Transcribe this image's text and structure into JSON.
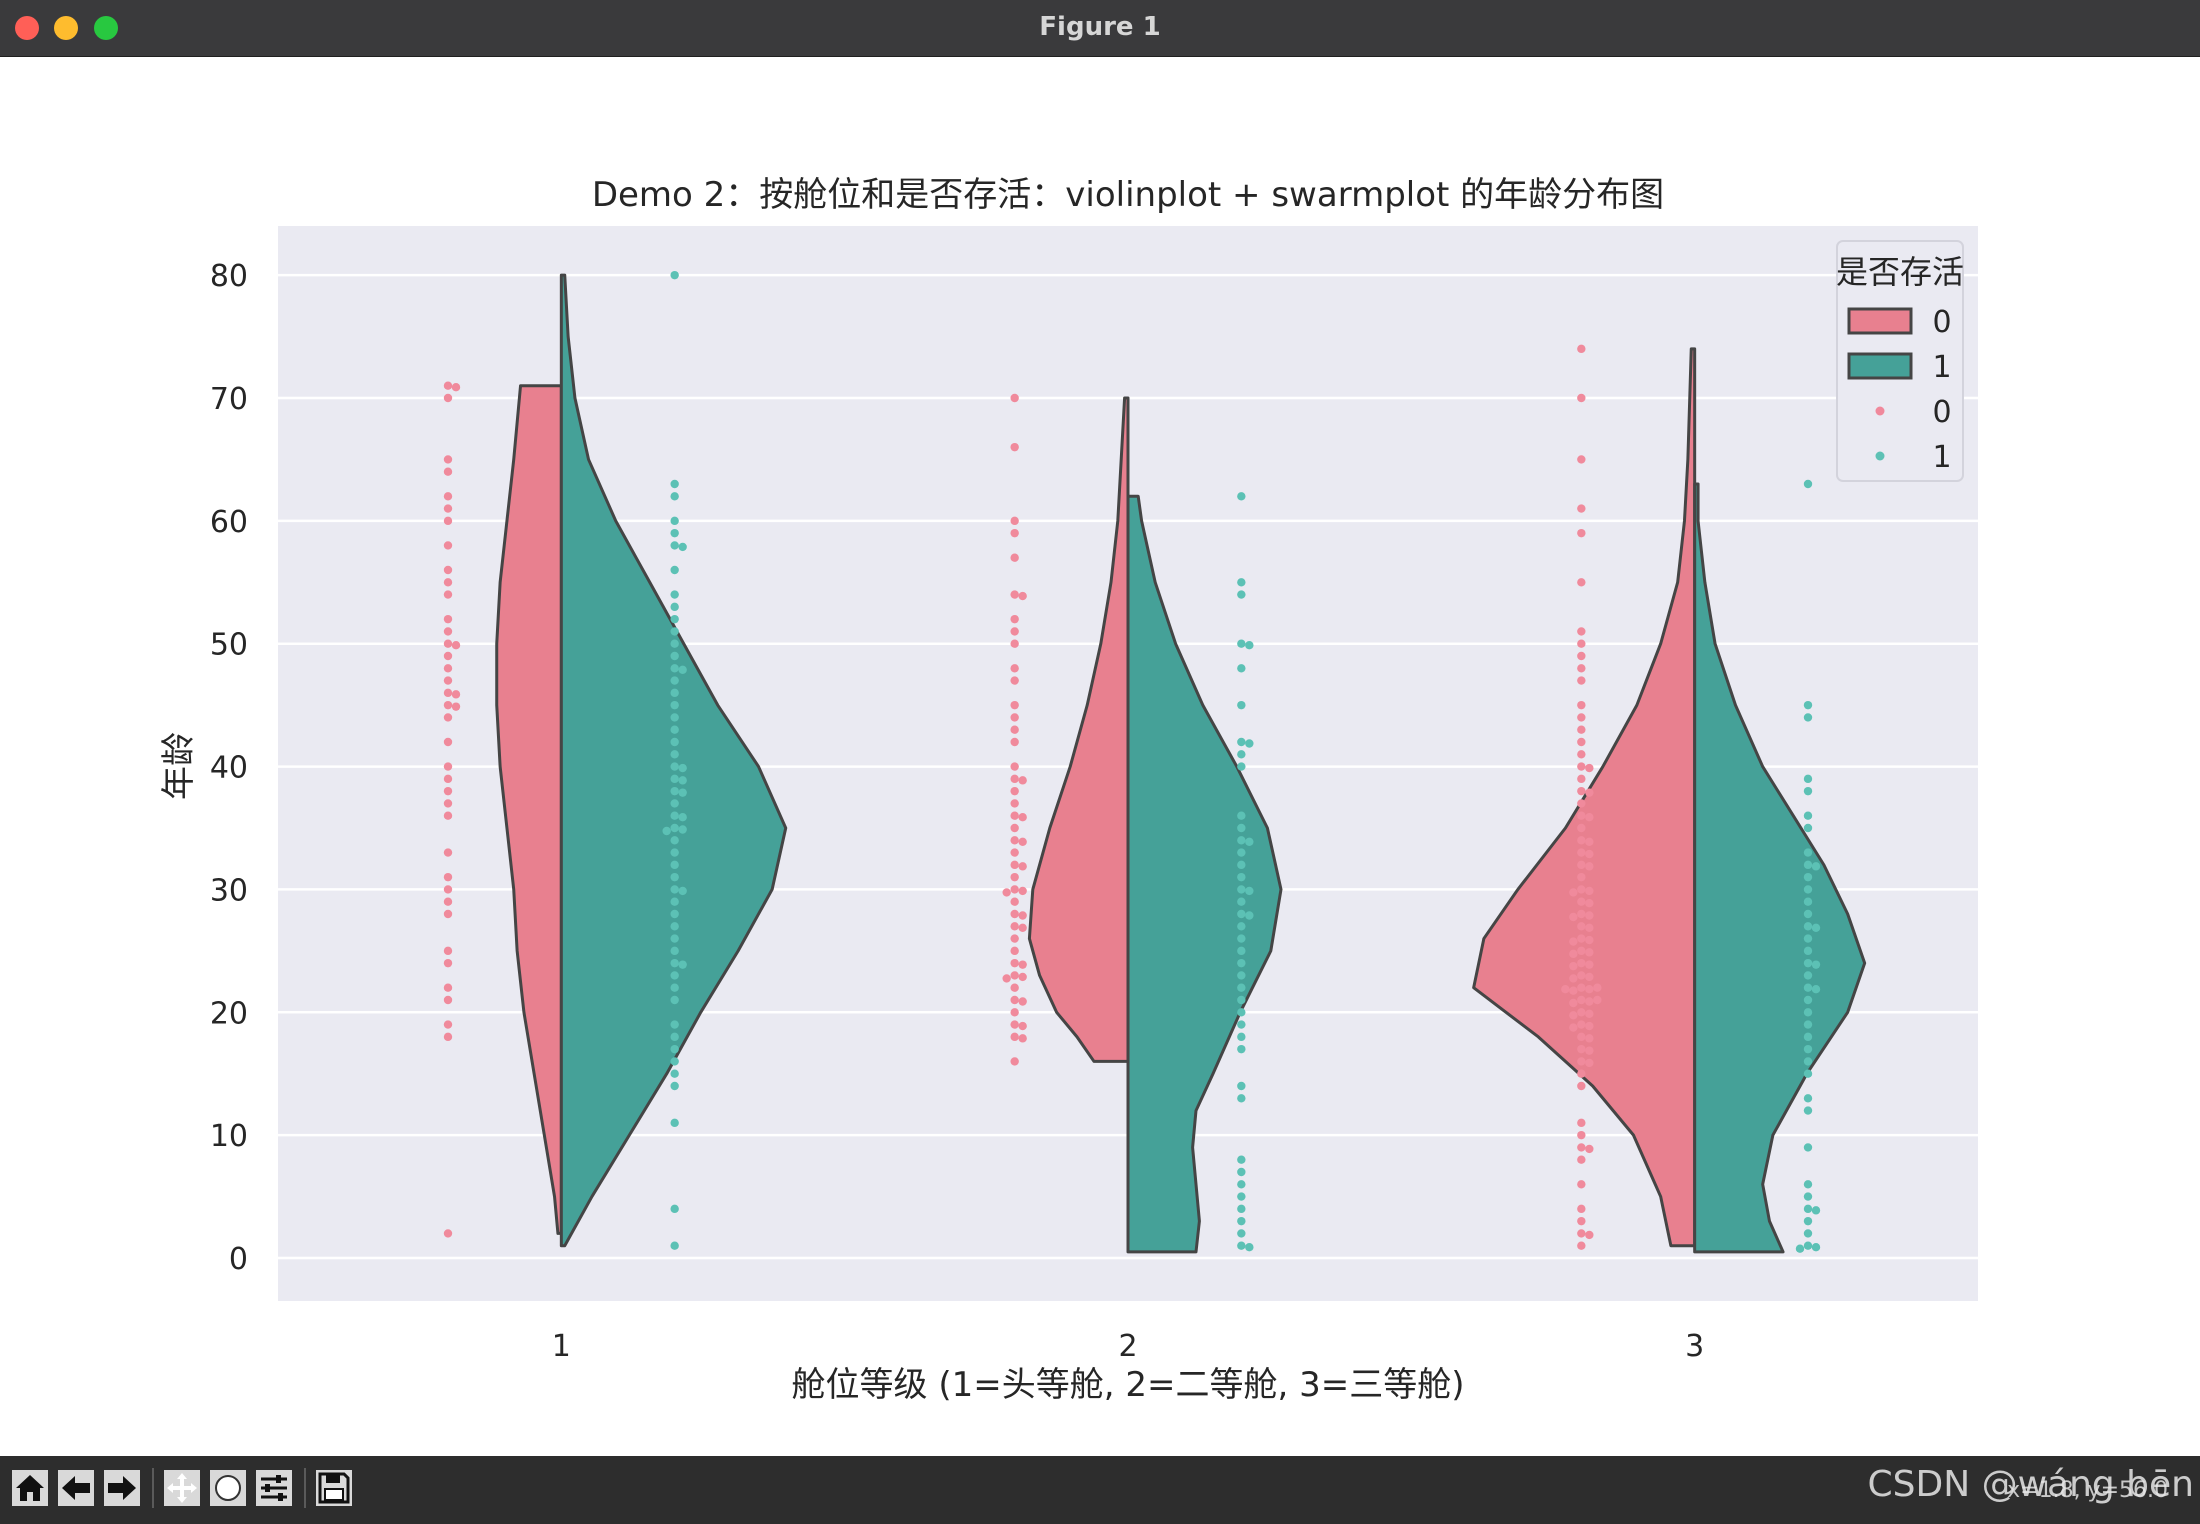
{
  "window": {
    "title": "Figure 1"
  },
  "toolbar": {
    "buttons": [
      "home-icon",
      "back-icon",
      "forward-icon",
      "pan-icon",
      "zoom-icon",
      "configure-subplots-icon",
      "save-icon"
    ],
    "coords": "x=1.8, y=56.0",
    "watermark": "CSDN @wáng bēn"
  },
  "chart_data": {
    "type": "violin",
    "title": "Demo 2：按舱位和是否存活：violinplot + swarmplot 的年龄分布图",
    "xlabel": "舱位等级 (1=头等舱, 2=二等舱, 3=三等舱)",
    "ylabel": "年龄",
    "categories": [
      "1",
      "2",
      "3"
    ],
    "ylim": [
      -3.5,
      84
    ],
    "yticks": [
      0,
      10,
      20,
      30,
      40,
      50,
      60,
      70,
      80
    ],
    "grid": true,
    "legend": {
      "title": "是否存活",
      "placement": "top-right",
      "entries": [
        {
          "label": "0",
          "kind": "patch",
          "color": "#e8808f"
        },
        {
          "label": "1",
          "kind": "patch",
          "color": "#45a198"
        },
        {
          "label": "0",
          "kind": "marker",
          "color": "#f0899c"
        },
        {
          "label": "1",
          "kind": "marker",
          "color": "#5ec1b5"
        }
      ]
    },
    "colors": {
      "survived_0_violin": "#e8808f",
      "survived_1_violin": "#45a198",
      "survived_0_points": "#f08a9c",
      "survived_1_points": "#5cc1b5",
      "axes_bg": "#eaeaf2",
      "violin_edge": "#454545"
    },
    "violins": [
      {
        "category": "1",
        "survived": 0,
        "profile": [
          [
            2,
            0.01
          ],
          [
            5,
            0.02
          ],
          [
            10,
            0.05
          ],
          [
            15,
            0.08
          ],
          [
            20,
            0.11
          ],
          [
            25,
            0.13
          ],
          [
            30,
            0.14
          ],
          [
            35,
            0.16
          ],
          [
            40,
            0.18
          ],
          [
            45,
            0.19
          ],
          [
            50,
            0.19
          ],
          [
            55,
            0.18
          ],
          [
            60,
            0.16
          ],
          [
            65,
            0.14
          ],
          [
            71,
            0.12
          ]
        ]
      },
      {
        "category": "1",
        "survived": 1,
        "profile": [
          [
            1,
            0.01
          ],
          [
            5,
            0.09
          ],
          [
            10,
            0.2
          ],
          [
            15,
            0.31
          ],
          [
            20,
            0.41
          ],
          [
            25,
            0.52
          ],
          [
            30,
            0.62
          ],
          [
            35,
            0.66
          ],
          [
            40,
            0.58
          ],
          [
            45,
            0.46
          ],
          [
            50,
            0.36
          ],
          [
            55,
            0.26
          ],
          [
            60,
            0.16
          ],
          [
            65,
            0.08
          ],
          [
            70,
            0.04
          ],
          [
            75,
            0.02
          ],
          [
            80,
            0.01
          ]
        ]
      },
      {
        "category": "2",
        "survived": 0,
        "profile": [
          [
            16,
            0.1
          ],
          [
            18,
            0.15
          ],
          [
            20,
            0.21
          ],
          [
            23,
            0.26
          ],
          [
            26,
            0.29
          ],
          [
            30,
            0.28
          ],
          [
            35,
            0.23
          ],
          [
            40,
            0.17
          ],
          [
            45,
            0.12
          ],
          [
            50,
            0.08
          ],
          [
            55,
            0.05
          ],
          [
            60,
            0.03
          ],
          [
            65,
            0.02
          ],
          [
            70,
            0.01
          ]
        ]
      },
      {
        "category": "2",
        "survived": 1,
        "profile": [
          [
            0.5,
            0.2
          ],
          [
            3,
            0.21
          ],
          [
            6,
            0.2
          ],
          [
            9,
            0.19
          ],
          [
            12,
            0.2
          ],
          [
            15,
            0.25
          ],
          [
            20,
            0.33
          ],
          [
            25,
            0.42
          ],
          [
            30,
            0.45
          ],
          [
            35,
            0.41
          ],
          [
            40,
            0.32
          ],
          [
            45,
            0.22
          ],
          [
            50,
            0.14
          ],
          [
            55,
            0.08
          ],
          [
            60,
            0.04
          ],
          [
            62,
            0.03
          ]
        ]
      },
      {
        "category": "3",
        "survived": 0,
        "profile": [
          [
            1,
            0.07
          ],
          [
            5,
            0.1
          ],
          [
            10,
            0.18
          ],
          [
            14,
            0.3
          ],
          [
            18,
            0.46
          ],
          [
            22,
            0.65
          ],
          [
            26,
            0.62
          ],
          [
            30,
            0.52
          ],
          [
            35,
            0.38
          ],
          [
            40,
            0.27
          ],
          [
            45,
            0.17
          ],
          [
            50,
            0.1
          ],
          [
            55,
            0.05
          ],
          [
            60,
            0.03
          ],
          [
            65,
            0.02
          ],
          [
            74,
            0.01
          ]
        ]
      },
      {
        "category": "3",
        "survived": 1,
        "profile": [
          [
            0.5,
            0.26
          ],
          [
            3,
            0.22
          ],
          [
            6,
            0.2
          ],
          [
            10,
            0.23
          ],
          [
            15,
            0.33
          ],
          [
            20,
            0.45
          ],
          [
            24,
            0.5
          ],
          [
            28,
            0.45
          ],
          [
            32,
            0.38
          ],
          [
            36,
            0.29
          ],
          [
            40,
            0.2
          ],
          [
            45,
            0.12
          ],
          [
            50,
            0.06
          ],
          [
            55,
            0.03
          ],
          [
            60,
            0.01
          ],
          [
            63,
            0.01
          ]
        ]
      }
    ],
    "swarms": [
      {
        "category": "1",
        "survived": 0,
        "ages": [
          2,
          18,
          19,
          21,
          22,
          24,
          25,
          28,
          29,
          30,
          31,
          33,
          36,
          37,
          38,
          39,
          40,
          42,
          44,
          45,
          45,
          46,
          46,
          47,
          48,
          49,
          50,
          50,
          51,
          52,
          54,
          55,
          56,
          58,
          60,
          61,
          62,
          64,
          65,
          70,
          71,
          71
        ]
      },
      {
        "category": "1",
        "survived": 1,
        "ages": [
          1,
          4,
          11,
          14,
          15,
          16,
          17,
          18,
          19,
          21,
          22,
          23,
          24,
          24,
          25,
          26,
          27,
          28,
          29,
          30,
          30,
          31,
          32,
          33,
          34,
          35,
          35,
          35,
          36,
          36,
          37,
          38,
          38,
          39,
          39,
          40,
          40,
          41,
          42,
          43,
          44,
          45,
          46,
          47,
          48,
          48,
          49,
          50,
          51,
          52,
          53,
          54,
          56,
          58,
          58,
          59,
          60,
          62,
          63,
          80
        ]
      },
      {
        "category": "2",
        "survived": 0,
        "ages": [
          16,
          18,
          18,
          19,
          19,
          20,
          21,
          21,
          22,
          23,
          23,
          23,
          24,
          24,
          25,
          26,
          27,
          27,
          28,
          28,
          29,
          30,
          30,
          30,
          31,
          32,
          32,
          33,
          34,
          34,
          35,
          36,
          36,
          37,
          38,
          39,
          39,
          40,
          42,
          43,
          44,
          45,
          47,
          48,
          50,
          51,
          52,
          54,
          54,
          57,
          59,
          60,
          66,
          70
        ]
      },
      {
        "category": "2",
        "survived": 1,
        "ages": [
          1,
          1,
          2,
          3,
          4,
          5,
          6,
          7,
          8,
          13,
          14,
          17,
          18,
          19,
          20,
          21,
          22,
          23,
          24,
          25,
          26,
          27,
          28,
          28,
          29,
          30,
          30,
          31,
          32,
          33,
          34,
          34,
          35,
          36,
          40,
          41,
          42,
          42,
          45,
          48,
          50,
          50,
          54,
          55,
          62
        ]
      },
      {
        "category": "3",
        "survived": 0,
        "ages": [
          1,
          2,
          2,
          3,
          4,
          6,
          8,
          9,
          9,
          10,
          11,
          14,
          15,
          16,
          16,
          17,
          17,
          18,
          18,
          19,
          19,
          19,
          20,
          20,
          20,
          21,
          21,
          21,
          21,
          22,
          22,
          22,
          22,
          22,
          23,
          23,
          23,
          24,
          24,
          24,
          25,
          25,
          25,
          26,
          26,
          26,
          27,
          27,
          28,
          28,
          28,
          29,
          29,
          30,
          30,
          30,
          31,
          32,
          32,
          33,
          33,
          34,
          34,
          35,
          36,
          36,
          37,
          38,
          38,
          39,
          40,
          40,
          41,
          42,
          43,
          44,
          45,
          47,
          48,
          49,
          50,
          51,
          55,
          59,
          61,
          65,
          70,
          74
        ]
      },
      {
        "category": "3",
        "survived": 1,
        "ages": [
          1,
          1,
          1,
          2,
          3,
          4,
          4,
          5,
          6,
          9,
          12,
          13,
          15,
          16,
          17,
          18,
          19,
          20,
          21,
          22,
          22,
          23,
          24,
          24,
          25,
          26,
          27,
          27,
          28,
          29,
          30,
          31,
          32,
          32,
          33,
          35,
          36,
          38,
          39,
          44,
          45,
          63
        ]
      }
    ]
  }
}
